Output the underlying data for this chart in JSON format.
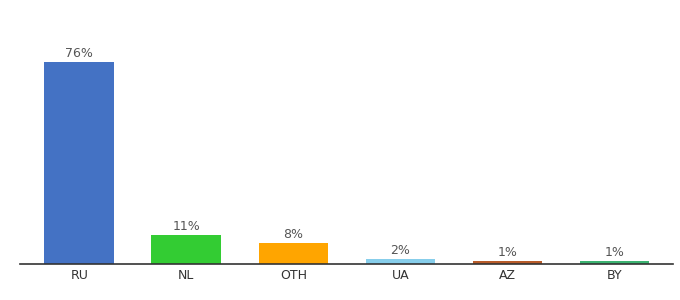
{
  "categories": [
    "RU",
    "NL",
    "OTH",
    "UA",
    "AZ",
    "BY"
  ],
  "values": [
    76,
    11,
    8,
    2,
    1,
    1
  ],
  "bar_colors": [
    "#4472C4",
    "#33CC33",
    "#FFA500",
    "#87CEEB",
    "#B85C2A",
    "#3CB371"
  ],
  "labels": [
    "76%",
    "11%",
    "8%",
    "2%",
    "1%",
    "1%"
  ],
  "background_color": "#ffffff",
  "ylim": [
    0,
    88
  ],
  "label_fontsize": 9,
  "tick_fontsize": 9,
  "bar_width": 0.65
}
